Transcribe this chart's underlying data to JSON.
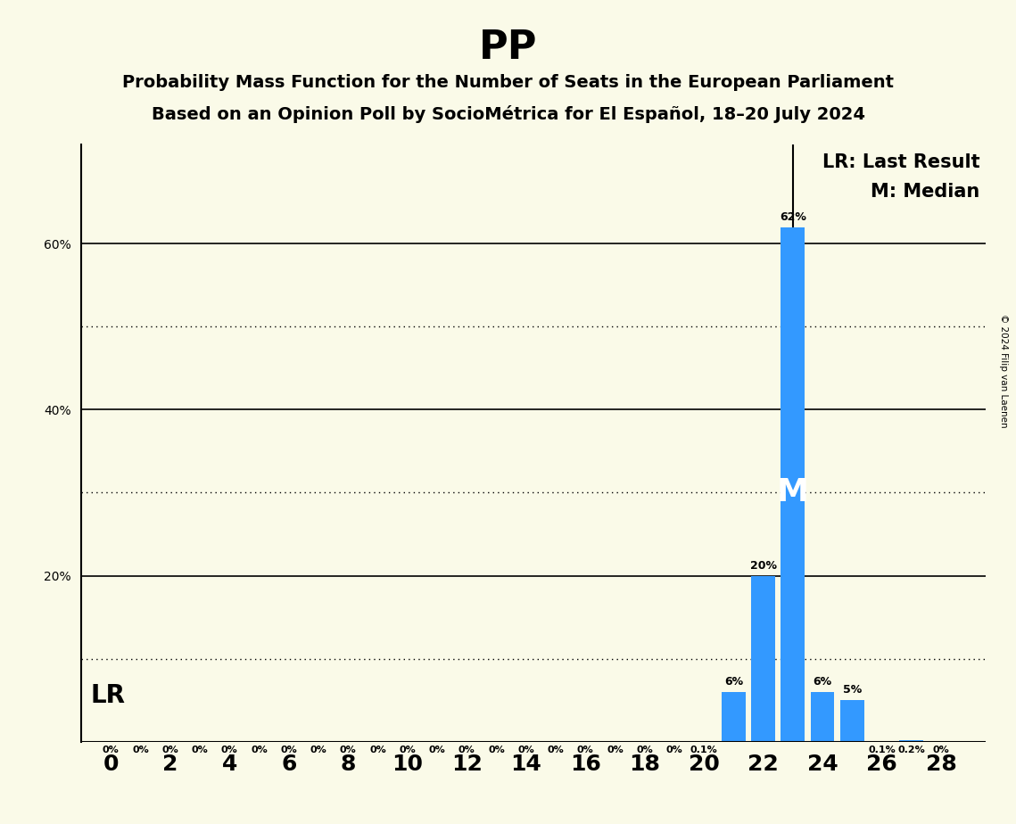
{
  "title": "PP",
  "subtitle1": "Probability Mass Function for the Number of Seats in the European Parliament",
  "subtitle2": "Based on an Opinion Poll by SocioMétrica for El Español, 18–20 July 2024",
  "background_color": "#FAFAE8",
  "bar_color": "#3399FF",
  "seats": [
    0,
    1,
    2,
    3,
    4,
    5,
    6,
    7,
    8,
    9,
    10,
    11,
    12,
    13,
    14,
    15,
    16,
    17,
    18,
    19,
    20,
    21,
    22,
    23,
    24,
    25,
    26,
    27,
    28
  ],
  "probabilities": [
    0.0,
    0.0,
    0.0,
    0.0,
    0.0,
    0.0,
    0.0,
    0.0,
    0.0,
    0.0,
    0.0,
    0.0,
    0.0,
    0.0,
    0.0,
    0.0,
    0.0,
    0.0,
    0.0,
    0.0,
    0.001,
    0.06,
    0.2,
    0.62,
    0.06,
    0.05,
    0.001,
    0.002,
    0.0
  ],
  "bar_labels": [
    "0%",
    "0%",
    "0%",
    "0%",
    "0%",
    "0%",
    "0%",
    "0%",
    "0%",
    "0%",
    "0%",
    "0%",
    "0%",
    "0%",
    "0%",
    "0%",
    "0%",
    "0%",
    "0%",
    "0%",
    "0.1%",
    "6%",
    "20%",
    "62%",
    "6%",
    "5%",
    "0.1%",
    "0.2%",
    "0%"
  ],
  "last_result_seat": 23,
  "median_seat": 23,
  "lr_label": "LR",
  "lr_legend": "LR: Last Result",
  "m_legend": "M: Median",
  "xlabel_ticks": [
    0,
    2,
    4,
    6,
    8,
    10,
    12,
    14,
    16,
    18,
    20,
    22,
    24,
    26,
    28
  ],
  "solid_yticks": [
    0.2,
    0.4,
    0.6
  ],
  "dotted_yticks": [
    0.1,
    0.3,
    0.5
  ],
  "ytick_positions": [
    0.2,
    0.4,
    0.6
  ],
  "ytick_labels": [
    "20%",
    "40%",
    "60%"
  ],
  "ylim": [
    0,
    0.72
  ],
  "xlim_left": -1.0,
  "xlim_right": 29.5,
  "copyright": "© 2024 Filip van Laenen"
}
